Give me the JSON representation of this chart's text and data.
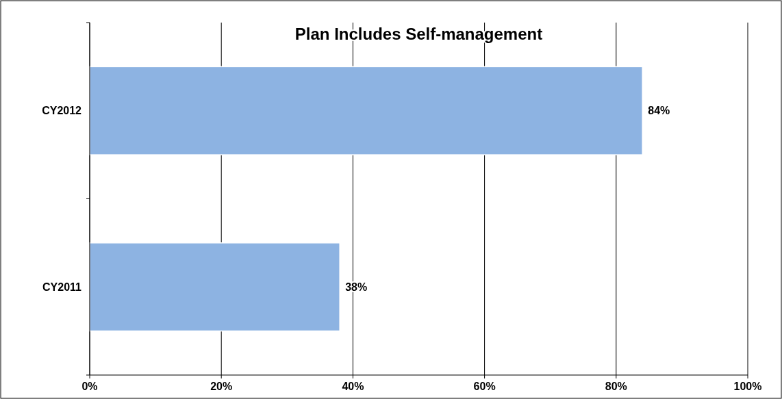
{
  "chart_data": {
    "type": "bar",
    "title": "Plan Includes Self-management",
    "orientation": "horizontal",
    "categories": [
      "CY2012",
      "CY2011"
    ],
    "series": [
      {
        "color": "#8db3e2",
        "values": [
          84,
          38
        ],
        "value_labels": [
          "84%",
          "38%"
        ]
      }
    ],
    "xlim": [
      0,
      100
    ],
    "xticks": [
      {
        "value": 0,
        "label": "0%"
      },
      {
        "value": 20,
        "label": "20%"
      },
      {
        "value": 40,
        "label": "40%"
      },
      {
        "value": 60,
        "label": "60%"
      },
      {
        "value": 80,
        "label": "80%"
      },
      {
        "value": 100,
        "label": "100%"
      }
    ],
    "grid": "x"
  }
}
